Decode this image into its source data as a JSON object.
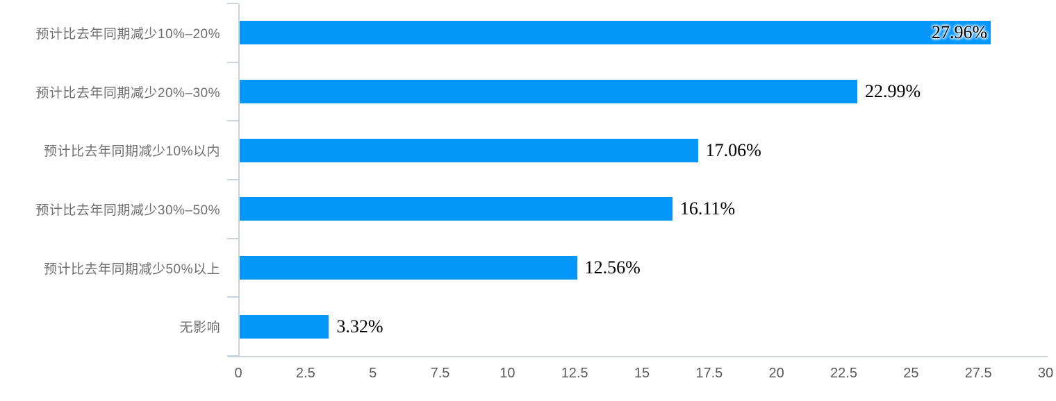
{
  "chart_data": {
    "type": "bar",
    "orientation": "horizontal",
    "title": "",
    "xlabel": "",
    "ylabel": "",
    "categories": [
      "预计比去年同期减少10%–20%",
      "预计比去年同期减少20%–30%",
      "预计比去年同期减少10%以内",
      "预计比去年同期减少30%–50%",
      "预计比去年同期减少50%以上",
      "无影响"
    ],
    "values": [
      27.96,
      22.99,
      17.06,
      16.11,
      12.56,
      3.32
    ],
    "value_labels": [
      "27.96%",
      "22.99%",
      "17.06%",
      "16.11%",
      "12.56%",
      "3.32%"
    ],
    "x_ticks": [
      0,
      2.5,
      5,
      7.5,
      10,
      12.5,
      15,
      17.5,
      20,
      22.5,
      25,
      27.5,
      30
    ],
    "xlim": [
      0,
      30
    ],
    "grid": false,
    "legend": false,
    "colors": {
      "bar": "#0497fa",
      "axis_line": "#c9d4dc",
      "category_label": "#6e6e6e",
      "axis_tick_label": "#595959",
      "value_label": "#000000"
    }
  }
}
